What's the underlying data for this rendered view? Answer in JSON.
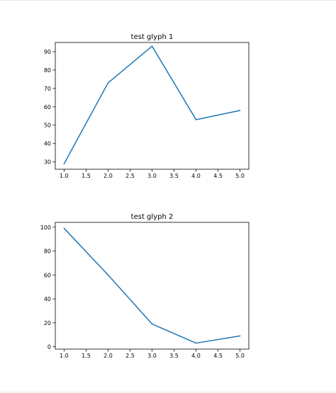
{
  "colors": {
    "line": "#1f77b4",
    "axes": "#000000",
    "background": "#ffffff"
  },
  "chart_data": [
    {
      "type": "line",
      "title": "test glyph 1",
      "xlabel": "",
      "ylabel": "",
      "grid": false,
      "x": [
        1.0,
        2.0,
        3.0,
        4.0,
        5.0
      ],
      "series": [
        {
          "values": [
            29,
            73,
            93,
            53,
            58
          ]
        }
      ],
      "xlim": [
        0.8,
        5.2
      ],
      "ylim": [
        26,
        95
      ],
      "xticks": [
        "1.0",
        "1.5",
        "2.0",
        "2.5",
        "3.0",
        "3.5",
        "4.0",
        "4.5",
        "5.0"
      ],
      "yticks": [
        "30",
        "40",
        "50",
        "60",
        "70",
        "80",
        "90"
      ]
    },
    {
      "type": "line",
      "title": "test glyph 2",
      "xlabel": "",
      "ylabel": "",
      "grid": false,
      "x": [
        1.0,
        2.0,
        3.0,
        4.0,
        5.0
      ],
      "series": [
        {
          "values": [
            99,
            60,
            19,
            3,
            9
          ]
        }
      ],
      "xlim": [
        0.8,
        5.2
      ],
      "ylim": [
        -2,
        104
      ],
      "xticks": [
        "1.0",
        "1.5",
        "2.0",
        "2.5",
        "3.0",
        "3.5",
        "4.0",
        "4.5",
        "5.0"
      ],
      "yticks": [
        "0",
        "20",
        "40",
        "60",
        "80",
        "100"
      ]
    }
  ]
}
